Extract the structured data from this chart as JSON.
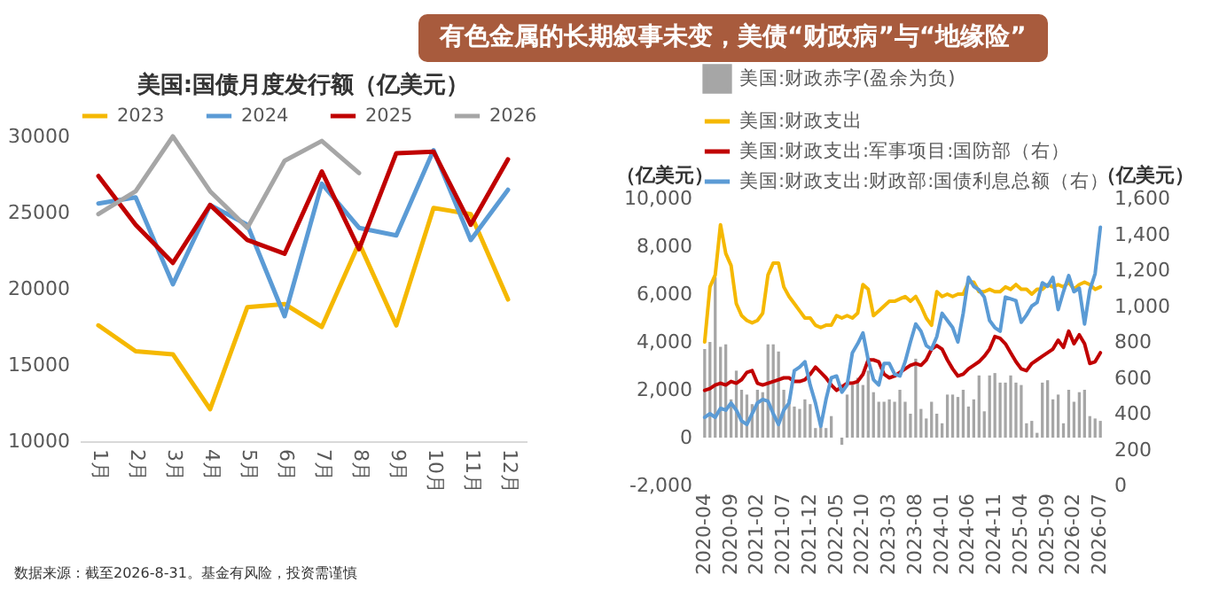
{
  "chart_data": [
    {
      "type": "other",
      "title": "有色金属的长期叙事未变，美债“财政病”与“地缘险”"
    },
    {
      "type": "line",
      "title": "美国:国债月度发行额（亿美元）",
      "categories": [
        "1月",
        "2月",
        "3月",
        "4月",
        "5月",
        "6月",
        "7月",
        "8月",
        "9月",
        "10月",
        "11月",
        "12月"
      ],
      "series": [
        {
          "name": "2023",
          "color": "#f5b800",
          "values": [
            17600,
            15900,
            15700,
            12100,
            18800,
            19000,
            17500,
            23000,
            17600,
            25300,
            24900,
            19300
          ]
        },
        {
          "name": "2024",
          "color": "#5b9bd5",
          "values": [
            25600,
            26000,
            20300,
            25500,
            24200,
            18200,
            26900,
            24000,
            23500,
            29100,
            23200,
            26500
          ]
        },
        {
          "name": "2025",
          "color": "#c00000",
          "values": [
            27400,
            24200,
            21700,
            25500,
            23200,
            22300,
            27700,
            22600,
            28900,
            29000,
            24200,
            28500
          ]
        },
        {
          "name": "2026",
          "color": "#a6a6a6",
          "values": [
            24900,
            26400,
            30000,
            26400,
            24000,
            28400,
            29700,
            27600,
            null,
            null,
            null,
            null
          ]
        }
      ],
      "ylim": [
        10000,
        30000
      ],
      "yticks": [
        10000,
        15000,
        20000,
        25000,
        30000
      ],
      "legend": "top",
      "annotations": [
        "数据来源：截至2026-8-31。基金有风险，投资需谨慎"
      ]
    },
    {
      "type": "line",
      "categories": [
        "2020-04",
        null,
        null,
        null,
        null,
        "2020-09",
        null,
        null,
        null,
        null,
        "2021-02",
        null,
        null,
        null,
        null,
        "2021-07",
        null,
        null,
        null,
        null,
        "2021-12",
        null,
        null,
        null,
        null,
        "2022-05",
        null,
        null,
        null,
        null,
        "2022-10",
        null,
        null,
        null,
        null,
        "2023-03",
        null,
        null,
        null,
        null,
        "2023-08",
        null,
        null,
        null,
        null,
        "2024-01",
        null,
        null,
        null,
        null,
        "2024-06",
        null,
        null,
        null,
        null,
        "2024-11",
        null,
        null,
        null,
        null,
        "2025-04",
        null,
        null,
        null,
        null,
        "2025-09",
        null,
        null,
        null,
        null,
        "2026-02",
        null,
        null,
        null,
        null,
        "2026-07"
      ],
      "series": [
        {
          "name": "美国:财政赤字(盈余为负)",
          "type": "bar",
          "color": "#a6a6a6",
          "values": [
            3700,
            4000,
            6700,
            3800,
            3900,
            1600,
            2800,
            2000,
            1800,
            1400,
            2000,
            1900,
            3900,
            3900,
            3600,
            2000,
            1600,
            1300,
            1200,
            1600,
            1400,
            400,
            600,
            400,
            900,
            null,
            -300,
            1800,
            2200,
            2500,
            2200,
            2800,
            1900,
            1500,
            1500,
            1600,
            1500,
            2000,
            1500,
            1000,
            3300,
            1200,
            800,
            1500,
            1000,
            600,
            1800,
            1800,
            1700,
            2000,
            1300,
            1600,
            2600,
            1100,
            2600,
            2700,
            2300,
            2300,
            2600,
            2300,
            2200,
            600,
            700,
            200,
            2300,
            2400,
            1600,
            1800,
            600,
            2000,
            1500,
            1900,
            2000,
            900,
            800,
            700
          ]
        },
        {
          "name": "美国:财政支出",
          "color": "#f5b800",
          "values": [
            4000,
            6300,
            6800,
            8900,
            7700,
            7200,
            5600,
            5100,
            4900,
            4800,
            4900,
            5200,
            6800,
            7300,
            7300,
            6300,
            5900,
            5600,
            5300,
            5000,
            5000,
            4700,
            4600,
            4700,
            4700,
            5100,
            5000,
            5100,
            5000,
            5200,
            6400,
            6200,
            5100,
            5300,
            5500,
            5700,
            5700,
            5800,
            5900,
            5700,
            5900,
            5500,
            5000,
            4700,
            6100,
            5900,
            6000,
            5900,
            6000,
            6000,
            6500,
            6500,
            6100,
            6100,
            6200,
            6100,
            6100,
            6300,
            6200,
            6400,
            6200,
            6200,
            6000,
            6200,
            6200,
            6400,
            6300,
            6400,
            6300,
            6500,
            6200,
            6400,
            6500,
            6400,
            6200,
            6300
          ]
        },
        {
          "name": "美国:财政支出:军事项目:国防部（右）",
          "axis": "y2",
          "color": "#c00000",
          "values": [
            530,
            540,
            560,
            570,
            560,
            580,
            570,
            590,
            630,
            640,
            570,
            560,
            570,
            580,
            590,
            600,
            600,
            580,
            580,
            590,
            620,
            660,
            630,
            600,
            560,
            530,
            550,
            570,
            570,
            580,
            620,
            700,
            700,
            690,
            620,
            600,
            610,
            630,
            650,
            670,
            680,
            670,
            700,
            760,
            780,
            760,
            700,
            650,
            610,
            620,
            650,
            670,
            690,
            720,
            760,
            830,
            820,
            790,
            740,
            690,
            650,
            640,
            680,
            700,
            720,
            740,
            760,
            810,
            770,
            860,
            790,
            840,
            790,
            680,
            690,
            740
          ]
        },
        {
          "name": "美国:财政支出:财政部:国债利息总额（右）",
          "axis": "y2",
          "color": "#5b9bd5",
          "values": [
            380,
            400,
            380,
            430,
            420,
            460,
            420,
            360,
            340,
            400,
            460,
            480,
            470,
            400,
            340,
            420,
            460,
            640,
            660,
            690,
            560,
            460,
            330,
            480,
            600,
            610,
            520,
            560,
            740,
            790,
            850,
            700,
            590,
            560,
            680,
            680,
            620,
            610,
            690,
            800,
            900,
            860,
            780,
            760,
            830,
            960,
            920,
            880,
            800,
            960,
            1160,
            1110,
            1090,
            1050,
            920,
            880,
            860,
            1050,
            1040,
            1030,
            910,
            950,
            1000,
            1020,
            1130,
            1110,
            1160,
            980,
            1080,
            1170,
            1080,
            1100,
            900,
            1090,
            1180,
            1440
          ]
        }
      ],
      "ylabel": "（亿美元）",
      "y2label": "（亿美元）",
      "ylim": [
        -2000,
        10000
      ],
      "yticks": [
        {
          "value": -2000,
          "label": "-2,000"
        },
        0,
        {
          "value": 2000,
          "label": "2,000"
        },
        {
          "value": 4000,
          "label": "4,000"
        },
        {
          "value": 6000,
          "label": "6,000"
        },
        {
          "value": 8000,
          "label": "8,000"
        },
        {
          "value": 10000,
          "label": "10,000"
        }
      ],
      "y2lim": [
        0,
        1600
      ],
      "y2ticks": [
        0,
        200,
        400,
        600,
        800,
        {
          "value": 1000,
          "label": "1,000"
        },
        {
          "value": 1200,
          "label": "1,200"
        },
        {
          "value": 1400,
          "label": "1,400"
        },
        {
          "value": 1600,
          "label": "1,600"
        }
      ],
      "legend": "top"
    }
  ]
}
